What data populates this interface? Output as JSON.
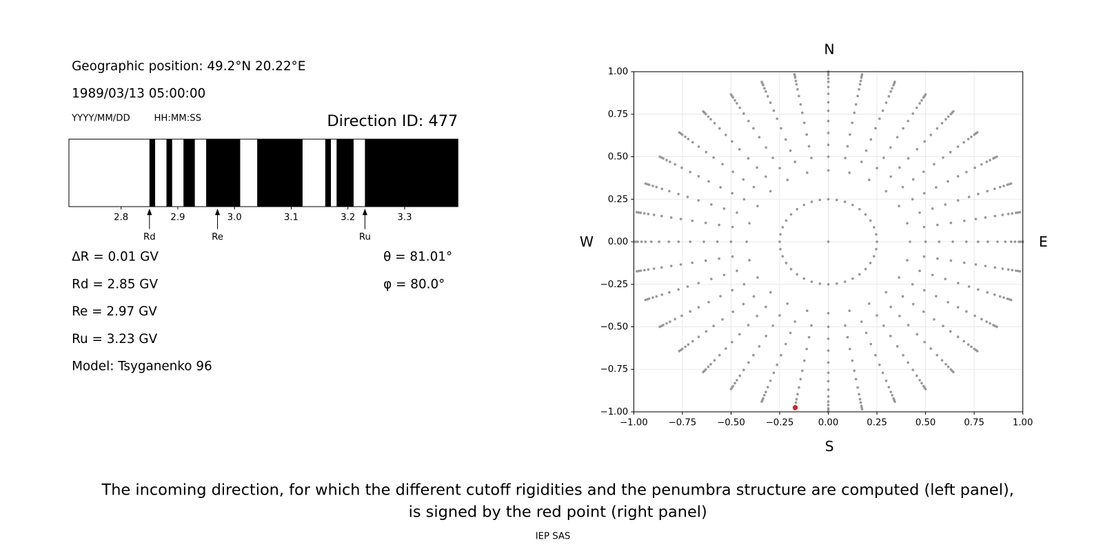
{
  "chart_data": [
    {
      "type": "penumbra",
      "position": "Geographic position: 49.2°N 20.22°E",
      "datetime": "1989/03/13 05:00:00",
      "date_label": "YYYY/MM/DD",
      "time_label": "HH:MM:SS",
      "title": "Direction ID: 477",
      "xlim": [
        2.708,
        3.394
      ],
      "xticks": [
        2.8,
        2.9,
        {
          "value": 3,
          "label": "3.0"
        },
        3.1,
        3.2,
        3.3
      ],
      "forbidden": [
        [
          2.85,
          2.86
        ],
        [
          2.88,
          2.89
        ],
        [
          2.91,
          2.93
        ],
        [
          2.95,
          3.01
        ],
        [
          3.04,
          3.12
        ],
        [
          3.16,
          3.17
        ],
        [
          3.18,
          3.21
        ],
        [
          3.23,
          3.394
        ]
      ],
      "forbidden_color": "#000000",
      "markers": [
        {
          "name": "Rd",
          "value": 2.85
        },
        {
          "name": "Re",
          "value": 2.97
        },
        {
          "name": "Ru",
          "value": 3.23
        }
      ],
      "annotations": [
        "ΔR = 0.01 GV",
        "Rd = 2.85 GV",
        "Re = 2.97 GV",
        "Ru = 3.23 GV",
        "Model: Tsyganenko 96"
      ],
      "angles": [
        "θ = 81.01°",
        "φ = 80.0°"
      ]
    },
    {
      "type": "scatter",
      "xlim": [
        -1,
        1
      ],
      "ylim": [
        -1,
        1
      ],
      "xticks": [
        {
          "value": -1,
          "label": "−1.00"
        },
        {
          "value": -0.75,
          "label": "−0.75"
        },
        {
          "value": -0.5,
          "label": "−0.50"
        },
        {
          "value": -0.25,
          "label": "−0.25"
        },
        {
          "value": 0,
          "label": "0.00"
        },
        {
          "value": 0.25,
          "label": "0.25"
        },
        {
          "value": 0.5,
          "label": "0.50"
        },
        {
          "value": 0.75,
          "label": "0.75"
        },
        {
          "value": 1,
          "label": "1.00"
        }
      ],
      "yticks": [
        {
          "value": -1,
          "label": "−1.00"
        },
        {
          "value": -0.75,
          "label": "−0.75"
        },
        {
          "value": -0.5,
          "label": "−0.50"
        },
        {
          "value": -0.25,
          "label": "−0.25"
        },
        {
          "value": 0,
          "label": "0.00"
        },
        {
          "value": 0.25,
          "label": "0.25"
        },
        {
          "value": 0.5,
          "label": "0.50"
        },
        {
          "value": 0.75,
          "label": "0.75"
        },
        {
          "value": 1,
          "label": "1.00"
        }
      ],
      "grid": true,
      "compass": [
        "N",
        "E",
        "S",
        "W"
      ],
      "color": "#999999",
      "rings": [
        {
          "r": 0,
          "azimuths": [
            0
          ]
        },
        {
          "r": 0.25,
          "azimuths": [
            0,
            10,
            20,
            30,
            40,
            50,
            60,
            70,
            80,
            90,
            100,
            110,
            120,
            130,
            140,
            150,
            160,
            170,
            180,
            190,
            200,
            210,
            220,
            230,
            240,
            250,
            260,
            270,
            280,
            290,
            300,
            310,
            320,
            330,
            340,
            350
          ]
        },
        {
          "r": 0.42,
          "azimuths": [
            0,
            15,
            30,
            45,
            60,
            75,
            90,
            105,
            120,
            135,
            150,
            165,
            180,
            195,
            210,
            225,
            240,
            255,
            270,
            285,
            300,
            315,
            330,
            345
          ]
        }
      ],
      "spokes": {
        "r": [
          0.5,
          0.57,
          0.64,
          0.71,
          0.77,
          0.82,
          0.87,
          0.91,
          0.94,
          0.96,
          0.98,
          0.99,
          1.0
        ],
        "azimuths": [
          0,
          10,
          20,
          30,
          40,
          50,
          60,
          70,
          80,
          90,
          100,
          110,
          120,
          130,
          140,
          150,
          160,
          170,
          180,
          190,
          200,
          210,
          220,
          230,
          240,
          250,
          260,
          270,
          280,
          290,
          300,
          310,
          320,
          330,
          340,
          350
        ]
      },
      "highlight": {
        "x": -0.17,
        "y": -0.975,
        "color": "#e41a1c"
      }
    }
  ],
  "caption": [
    "The incoming direction, for which the different cutoff rigidities and the penumbra structure are computed (left panel),",
    "is signed by the red point (right panel)"
  ],
  "footer": "IEP SAS"
}
